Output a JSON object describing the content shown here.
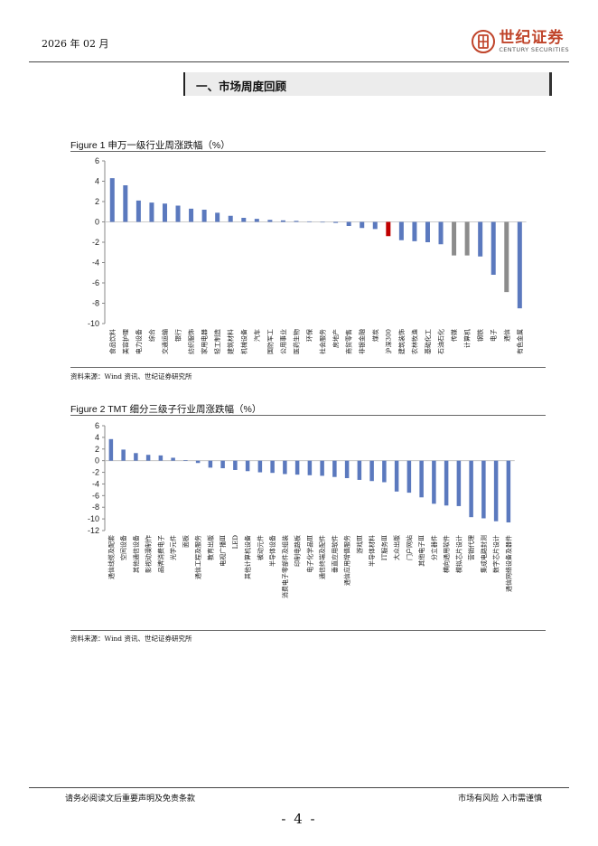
{
  "header": {
    "date": "2026 年 02 月",
    "brand_cn": "世纪证券",
    "brand_en": "CENTURY SECURITIES",
    "brand_color": "#c0442a"
  },
  "section_title": "一、市场周度回顾",
  "source_note": "资料来源：Wind 资讯、世纪证券研究所",
  "footer": {
    "disclaimer": "请务必阅读文后重要声明及免责条款",
    "risk": "市场有风险  入市需谨慎",
    "page": "- 4 -"
  },
  "colors": {
    "bar": "#5b79be",
    "highlight": "#c00000",
    "gray": "#8c8c8c"
  },
  "chart_data": [
    {
      "type": "bar",
      "title": "Figure 1  申万一级行业周涨跌幅（%）",
      "ylim": [
        -10,
        6
      ],
      "yticks": [
        6,
        4,
        2,
        0,
        -2,
        -4,
        -6,
        -8,
        -10
      ],
      "categories": [
        "食品饮料",
        "美容护理",
        "电力设备",
        "综合",
        "交通运输",
        "银行",
        "纺织服饰",
        "家用电器",
        "轻工制造",
        "建筑材料",
        "机械设备",
        "汽车",
        "国防军工",
        "公用事业",
        "医药生物",
        "环保",
        "社会服务",
        "房地产",
        "商贸零售",
        "非银金融",
        "煤炭",
        "沪深300",
        "建筑装饰",
        "农林牧渔",
        "基础化工",
        "石油石化",
        "传媒",
        "计算机",
        "钢铁",
        "电子",
        "通信",
        "有色金属"
      ],
      "values": [
        4.3,
        3.6,
        2.1,
        1.9,
        1.8,
        1.6,
        1.3,
        1.2,
        0.9,
        0.6,
        0.4,
        0.3,
        0.2,
        0.15,
        0.1,
        0.05,
        0,
        -0.1,
        -0.4,
        -0.6,
        -0.7,
        -1.4,
        -1.8,
        -1.9,
        -2.0,
        -2.2,
        -3.3,
        -3.3,
        -3.4,
        -5.2,
        -6.9,
        -8.5
      ],
      "bar_colors": [
        "bar",
        "bar",
        "bar",
        "bar",
        "bar",
        "bar",
        "bar",
        "bar",
        "bar",
        "bar",
        "bar",
        "bar",
        "bar",
        "bar",
        "bar",
        "bar",
        "bar",
        "bar",
        "bar",
        "bar",
        "bar",
        "highlight",
        "bar",
        "bar",
        "bar",
        "bar",
        "gray",
        "gray",
        "bar",
        "bar",
        "gray",
        "bar"
      ]
    },
    {
      "type": "bar",
      "title": "Figure 2 TMT 细分三级子行业周涨跌幅（%）",
      "ylim": [
        -12,
        6
      ],
      "yticks": [
        6,
        4,
        2,
        0,
        -2,
        -4,
        -6,
        -8,
        -10,
        -12
      ],
      "categories": [
        "通信线缆及配套",
        "空间设备",
        "其他通信设备",
        "影视动漫制作",
        "品牌消费电子",
        "光学元件",
        "面板",
        "通信工程及服务",
        "教育出版",
        "电视广播Ⅲ",
        "LED",
        "其他计算机设备",
        "被动元件",
        "半导体设备",
        "消费电子零部件及组装",
        "印制电路板",
        "电子化学品Ⅲ",
        "通信终端及配件",
        "垂直应用软件",
        "通信应用增值服务",
        "游戏Ⅲ",
        "半导体材料",
        "IT服务Ⅲ",
        "大众出版",
        "门户网站",
        "其他电子Ⅲ",
        "分立器件",
        "横向通用软件",
        "模拟芯片设计",
        "营销代理",
        "集成电路封测",
        "数字芯片设计",
        "通信网络设备及器件"
      ],
      "values": [
        3.7,
        1.9,
        1.3,
        1.0,
        0.9,
        0.5,
        0.1,
        -0.4,
        -1.2,
        -1.3,
        -1.6,
        -1.8,
        -2.0,
        -2.1,
        -2.3,
        -2.4,
        -2.5,
        -2.6,
        -2.8,
        -3.0,
        -3.3,
        -3.5,
        -3.7,
        -5.3,
        -5.5,
        -6.3,
        -7.4,
        -7.7,
        -7.8,
        -9.7,
        -9.9,
        -10.4,
        -10.6
      ],
      "bar_colors": []
    }
  ]
}
